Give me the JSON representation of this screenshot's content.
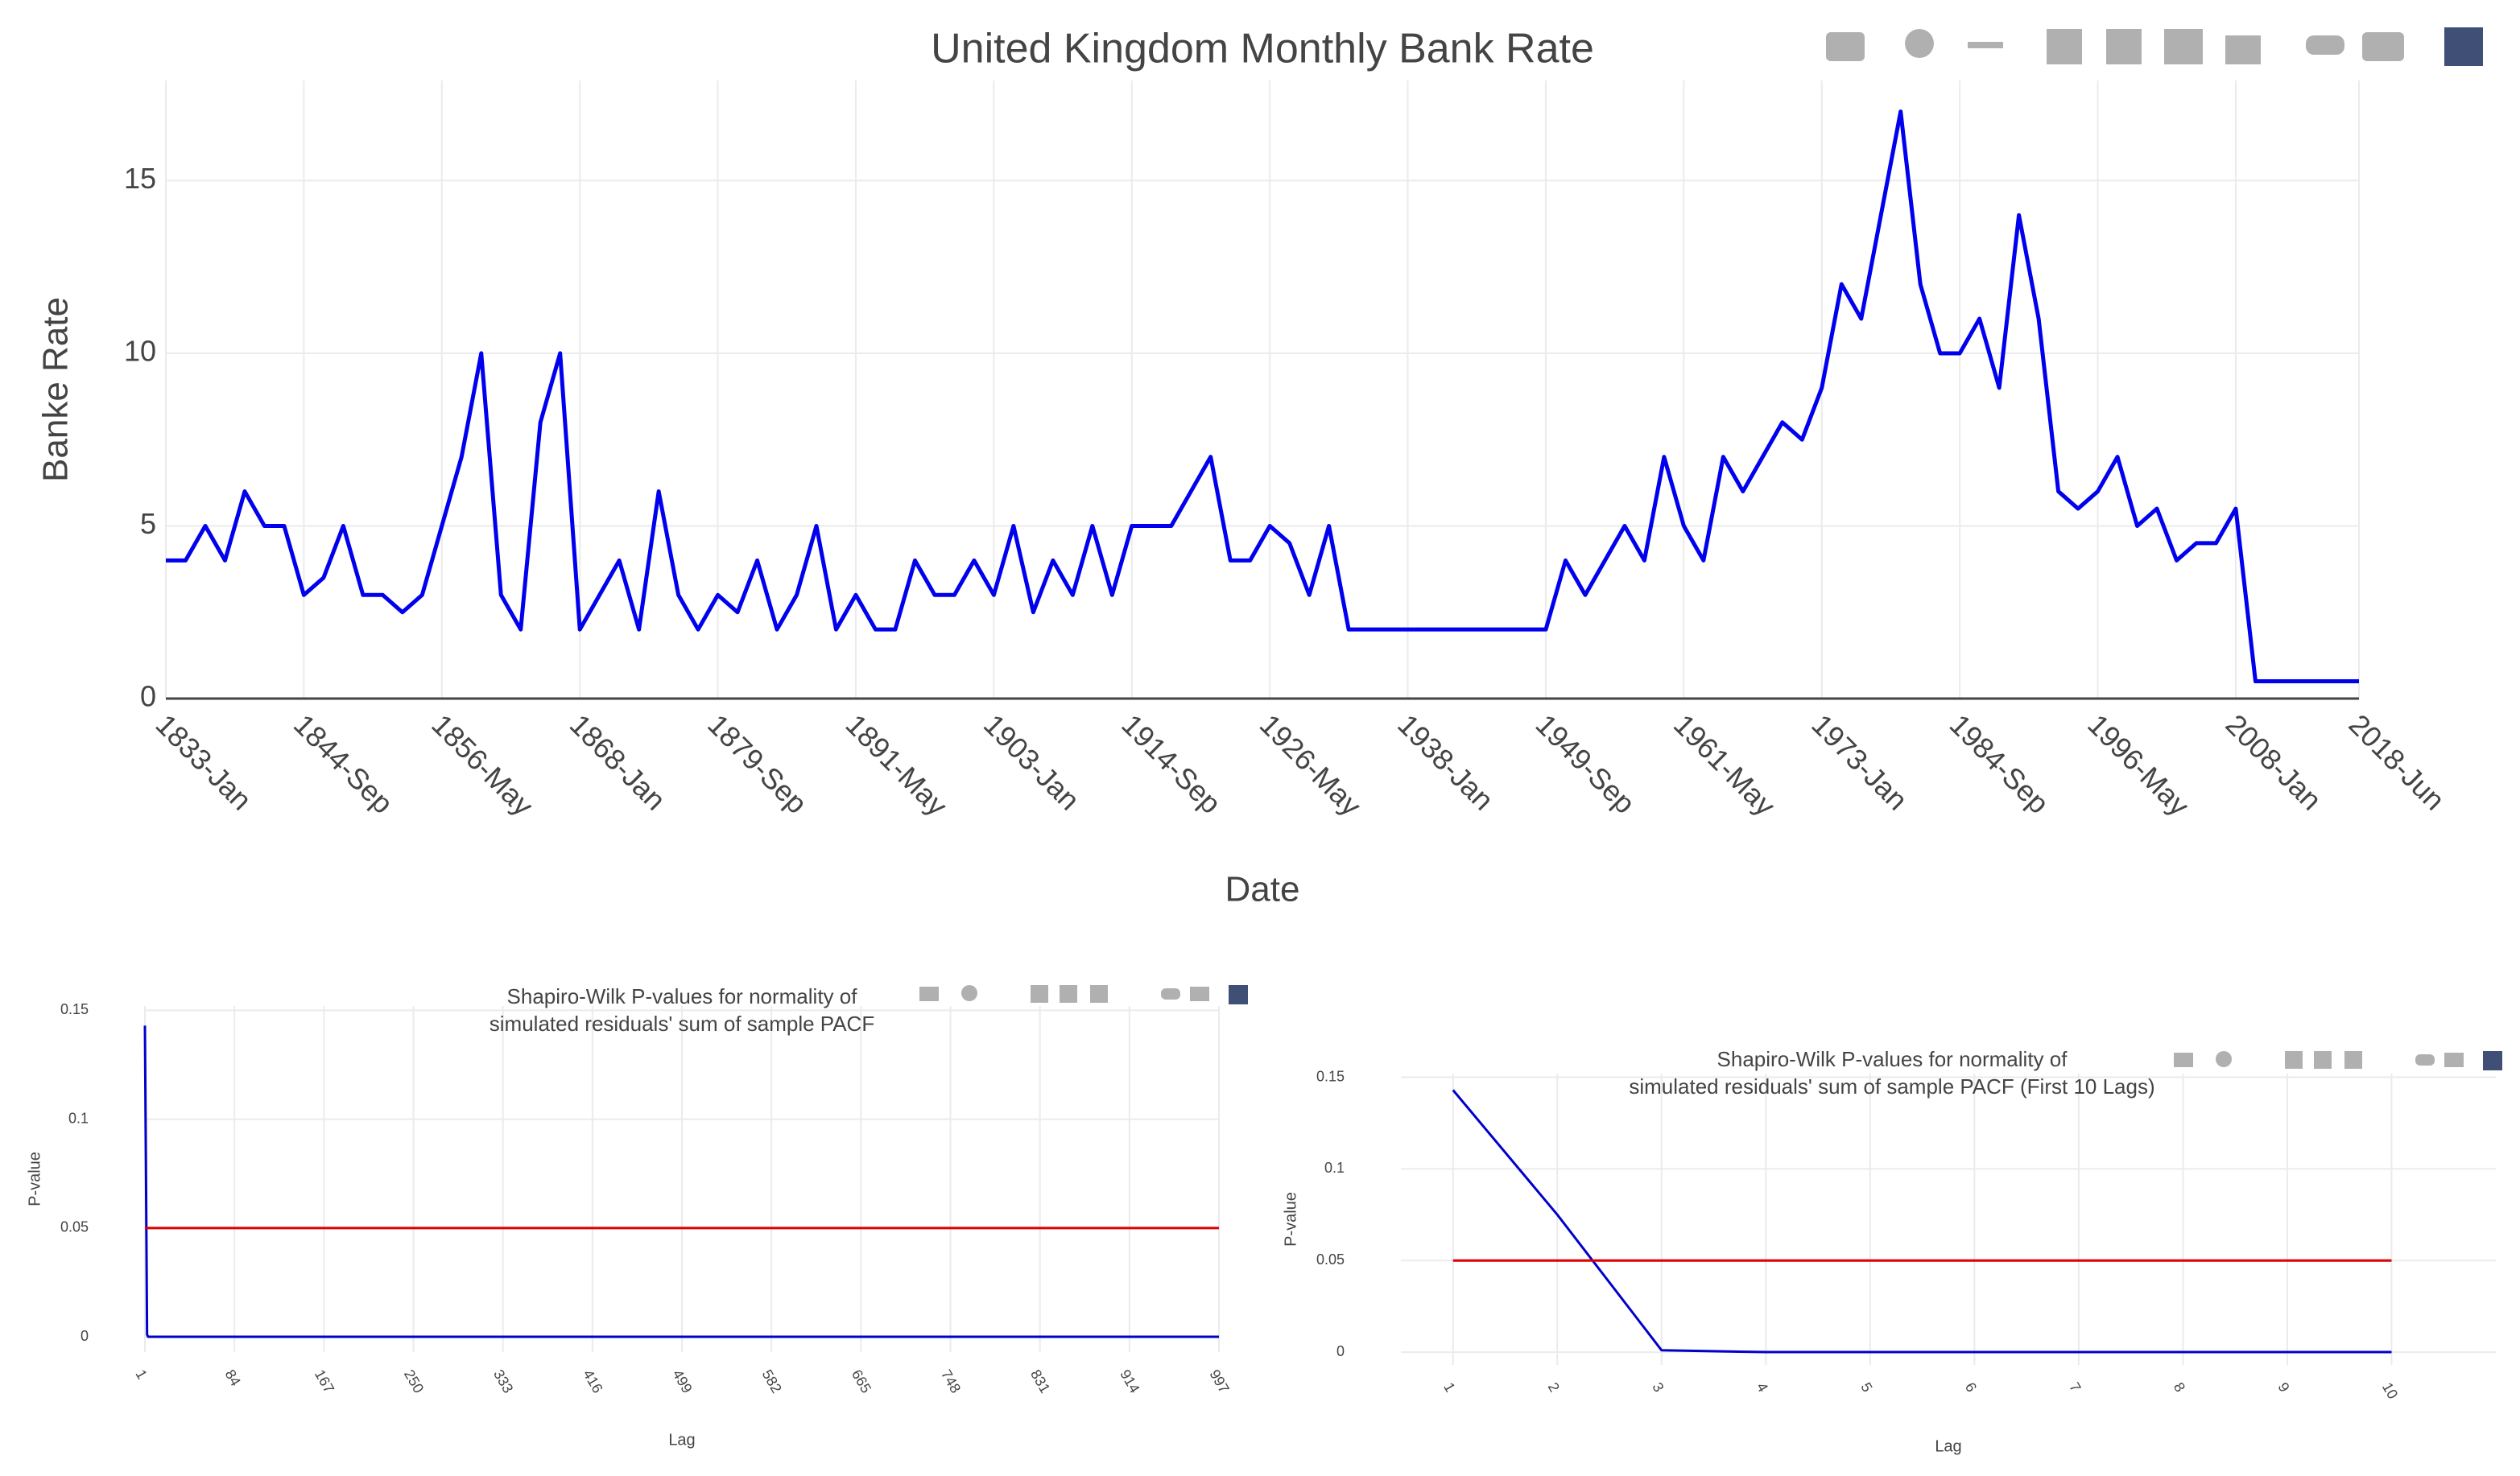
{
  "chart_data": [
    {
      "type": "line",
      "title": "United Kingdom Monthly Bank Rate",
      "xlabel": "Date",
      "ylabel": "Banke Rate",
      "x": [
        "1833-Jan",
        "1834-Sep",
        "1836-May",
        "1838-Jan",
        "1839-Sep",
        "1841-May",
        "1843-Jan",
        "1844-Sep",
        "1846-May",
        "1848-Jan",
        "1849-Sep",
        "1851-May",
        "1853-Jan",
        "1854-Sep",
        "1856-May",
        "1858-Jan",
        "1859-Sep",
        "1861-May",
        "1863-Jan",
        "1864-Sep",
        "1866-May",
        "1868-Jan",
        "1869-Sep",
        "1871-May",
        "1873-Jan",
        "1874-Sep",
        "1876-May",
        "1878-Jan",
        "1879-Sep",
        "1881-May",
        "1883-Jan",
        "1884-Sep",
        "1886-May",
        "1888-Jan",
        "1889-Sep",
        "1891-May",
        "1893-Jan",
        "1894-Sep",
        "1896-May",
        "1898-Jan",
        "1899-Sep",
        "1901-May",
        "1903-Jan",
        "1904-Sep",
        "1906-May",
        "1908-Jan",
        "1909-Sep",
        "1911-May",
        "1913-Jan",
        "1914-Sep",
        "1916-May",
        "1918-Jan",
        "1919-Sep",
        "1921-May",
        "1923-Jan",
        "1924-Sep",
        "1926-May",
        "1928-Jan",
        "1929-Sep",
        "1931-May",
        "1933-Jan",
        "1934-Sep",
        "1936-May",
        "1938-Jan",
        "1939-Sep",
        "1941-May",
        "1943-Jan",
        "1944-Sep",
        "1946-May",
        "1948-Jan",
        "1949-Sep",
        "1951-May",
        "1953-Jan",
        "1954-Sep",
        "1956-May",
        "1958-Jan",
        "1959-Sep",
        "1961-May",
        "1963-Jan",
        "1964-Sep",
        "1966-May",
        "1968-Jan",
        "1969-Sep",
        "1971-May",
        "1973-Jan",
        "1974-Sep",
        "1976-May",
        "1978-Jan",
        "1979-Sep",
        "1981-May",
        "1983-Jan",
        "1984-Sep",
        "1986-May",
        "1988-Jan",
        "1989-Sep",
        "1991-May",
        "1993-Jan",
        "1994-Sep",
        "1996-May",
        "1998-Jan",
        "1999-Sep",
        "2001-May",
        "2003-Jan",
        "2004-Sep",
        "2006-May",
        "2008-Jan",
        "2009-Sep",
        "2011-May",
        "2013-Jan",
        "2014-Sep",
        "2016-May",
        "2018-Jan",
        "2018-Jun"
      ],
      "series": [
        {
          "color": "#0000ee",
          "values": [
            4,
            4,
            5,
            4,
            6,
            5,
            5,
            3,
            3.5,
            5,
            3,
            3,
            2.5,
            3,
            5,
            7,
            10,
            3,
            2,
            8,
            10,
            2,
            3,
            4,
            2,
            6,
            3,
            2,
            3,
            2.5,
            4,
            2,
            3,
            5,
            2,
            3,
            2,
            2,
            4,
            3,
            3,
            4,
            3,
            5,
            2.5,
            4,
            3,
            5,
            3,
            5,
            5,
            5,
            6,
            7,
            4,
            4,
            5,
            4.5,
            3,
            5,
            2,
            2,
            2,
            2,
            2,
            2,
            2,
            2,
            2,
            2,
            2,
            4,
            3,
            4,
            5,
            4,
            7,
            5,
            4,
            7,
            6,
            7,
            8,
            7.5,
            9,
            12,
            11,
            14,
            17,
            12,
            10,
            10,
            11,
            9,
            14,
            11,
            6,
            5.5,
            6,
            7,
            5,
            5.5,
            4,
            4.5,
            4.5,
            5.5,
            0.5,
            0.5,
            0.5,
            0.5,
            0.5,
            0.5,
            0.5
          ]
        }
      ],
      "xlim": [
        "1833-Jan",
        "2018-Jun"
      ],
      "xticks": [
        "1833-Jan",
        "1844-Sep",
        "1856-May",
        "1868-Jan",
        "1879-Sep",
        "1891-May",
        "1903-Jan",
        "1914-Sep",
        "1926-May",
        "1938-Jan",
        "1949-Sep",
        "1961-May",
        "1973-Jan",
        "1984-Sep",
        "1996-May",
        "2008-Jan",
        "2018-Jun"
      ],
      "ylim": [
        0,
        17.9
      ],
      "yticks": [
        0,
        5,
        10,
        15
      ],
      "grid": true
    },
    {
      "type": "line",
      "title": [
        "Shapiro-Wilk P-values for normality of",
        "simulated residuals' sum of sample PACF"
      ],
      "xlabel": "Lag",
      "ylabel": "P-value",
      "series": [
        {
          "color": "#0000cc",
          "x": [
            1,
            2,
            3,
            4,
            5,
            6,
            7,
            8,
            9,
            10,
            997
          ],
          "values": [
            0.143,
            0.075,
            0.001,
            0,
            0,
            0,
            0,
            0,
            0,
            0,
            0
          ]
        },
        {
          "color": "#dd0000",
          "x": [
            1,
            997
          ],
          "values": [
            0.05,
            0.05
          ]
        }
      ],
      "xlim": [
        1,
        997
      ],
      "xticks": [
        1,
        84,
        167,
        250,
        333,
        416,
        499,
        582,
        665,
        748,
        831,
        914,
        997
      ],
      "ylim": [
        -0.007,
        0.152
      ],
      "yticks": [
        0,
        0.05,
        0.1,
        0.15
      ],
      "grid": true
    },
    {
      "type": "line",
      "title": [
        "Shapiro-Wilk P-values for normality of",
        "simulated residuals' sum of sample PACF (First 10 Lags)"
      ],
      "xlabel": "Lag",
      "ylabel": "P-value",
      "series": [
        {
          "color": "#0000cc",
          "x": [
            1,
            2,
            3,
            4,
            5,
            6,
            7,
            8,
            9,
            10
          ],
          "values": [
            0.143,
            0.075,
            0.001,
            0,
            0,
            0,
            0,
            0,
            0,
            0
          ]
        },
        {
          "color": "#dd0000",
          "x": [
            1,
            10
          ],
          "values": [
            0.05,
            0.05
          ]
        }
      ],
      "xlim": [
        0.5,
        11
      ],
      "xticks": [
        1,
        2,
        3,
        4,
        5,
        6,
        7,
        8,
        9,
        10
      ],
      "ylim": [
        -0.007,
        0.152
      ],
      "yticks": [
        0,
        0.05,
        0.1,
        0.15
      ],
      "grid": true
    }
  ]
}
